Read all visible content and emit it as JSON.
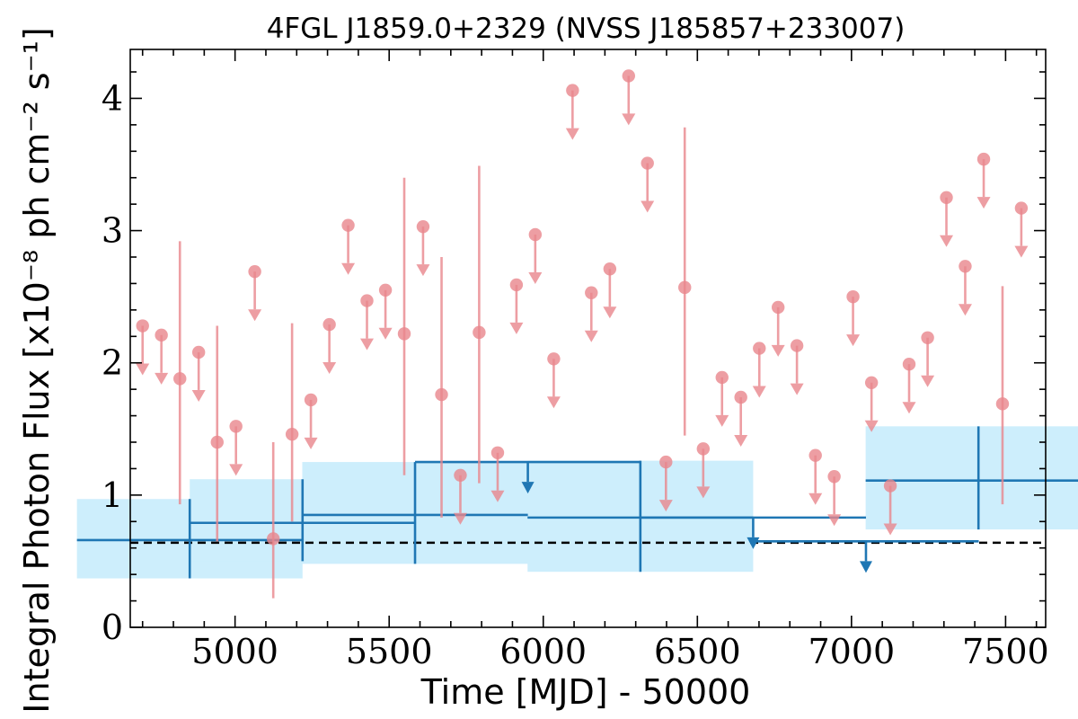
{
  "chart_data": {
    "type": "scatter",
    "title": "4FGL J1859.0+2329 (NVSS J185857+233007)",
    "xlabel": "Time [MJD] - 50000",
    "ylabel": "Integral Photon Flux [x10⁻⁸ ph cm⁻² s⁻¹]",
    "xlim": [
      4660,
      7630
    ],
    "ylim": [
      0,
      4.37
    ],
    "x_ticks": [
      5000,
      5500,
      6000,
      6500,
      7000,
      7500
    ],
    "y_ticks": [
      0,
      1,
      2,
      3,
      4
    ],
    "grid": false,
    "reference_level": 0.64,
    "colors": {
      "short_bins": "#e8868c",
      "long_bins": "#1f77b4",
      "long_bins_band": "#cdeefc",
      "reference_line": "#000000"
    },
    "series": [
      {
        "points": [
          {
            "x": 4700,
            "y": 2.28,
            "upper_limit": true
          },
          {
            "x": 4761,
            "y": 2.21,
            "upper_limit": true
          },
          {
            "x": 4821,
            "y": 1.88,
            "yerr": [
              0.95,
              1.04
            ]
          },
          {
            "x": 4882,
            "y": 2.08,
            "upper_limit": true
          },
          {
            "x": 4942,
            "y": 1.4,
            "yerr": [
              0.75,
              0.88
            ]
          },
          {
            "x": 5003,
            "y": 1.52,
            "upper_limit": true
          },
          {
            "x": 5064,
            "y": 2.69,
            "upper_limit": true
          },
          {
            "x": 5124,
            "y": 0.67,
            "yerr": [
              0.45,
              0.73
            ]
          },
          {
            "x": 5185,
            "y": 1.46,
            "yerr": [
              0.66,
              0.84
            ]
          },
          {
            "x": 5246,
            "y": 1.72,
            "upper_limit": true
          },
          {
            "x": 5306,
            "y": 2.29,
            "upper_limit": true
          },
          {
            "x": 5367,
            "y": 3.04,
            "upper_limit": true
          },
          {
            "x": 5428,
            "y": 2.47,
            "upper_limit": true
          },
          {
            "x": 5488,
            "y": 2.55,
            "upper_limit": true
          },
          {
            "x": 5549,
            "y": 2.22,
            "yerr": [
              1.07,
              1.18
            ]
          },
          {
            "x": 5610,
            "y": 3.03,
            "upper_limit": true
          },
          {
            "x": 5670,
            "y": 1.76,
            "yerr": [
              0.93,
              1.04
            ]
          },
          {
            "x": 5731,
            "y": 1.15,
            "upper_limit": true
          },
          {
            "x": 5792,
            "y": 2.23,
            "yerr": [
              1.14,
              1.26
            ]
          },
          {
            "x": 5852,
            "y": 1.32,
            "upper_limit": true
          },
          {
            "x": 5913,
            "y": 2.59,
            "upper_limit": true
          },
          {
            "x": 5974,
            "y": 2.97,
            "upper_limit": true
          },
          {
            "x": 6034,
            "y": 2.03,
            "upper_limit": true
          },
          {
            "x": 6095,
            "y": 4.06,
            "upper_limit": true
          },
          {
            "x": 6156,
            "y": 2.53,
            "upper_limit": true
          },
          {
            "x": 6216,
            "y": 2.71,
            "upper_limit": true
          },
          {
            "x": 6277,
            "y": 4.17,
            "upper_limit": true
          },
          {
            "x": 6338,
            "y": 3.51,
            "upper_limit": true
          },
          {
            "x": 6398,
            "y": 1.25,
            "upper_limit": true
          },
          {
            "x": 6459,
            "y": 2.57,
            "yerr": [
              1.12,
              1.21
            ]
          },
          {
            "x": 6519,
            "y": 1.35,
            "upper_limit": true
          },
          {
            "x": 6580,
            "y": 1.89,
            "upper_limit": true
          },
          {
            "x": 6641,
            "y": 1.74,
            "upper_limit": true
          },
          {
            "x": 6701,
            "y": 2.11,
            "upper_limit": true
          },
          {
            "x": 6762,
            "y": 2.42,
            "upper_limit": true
          },
          {
            "x": 6823,
            "y": 2.13,
            "upper_limit": true
          },
          {
            "x": 6883,
            "y": 1.3,
            "upper_limit": true
          },
          {
            "x": 6944,
            "y": 1.14,
            "upper_limit": true
          },
          {
            "x": 7005,
            "y": 2.5,
            "upper_limit": true
          },
          {
            "x": 7065,
            "y": 1.85,
            "upper_limit": true
          },
          {
            "x": 7126,
            "y": 1.07,
            "upper_limit": true
          },
          {
            "x": 7187,
            "y": 1.99,
            "upper_limit": true
          },
          {
            "x": 7247,
            "y": 2.19,
            "upper_limit": true
          },
          {
            "x": 7308,
            "y": 3.25,
            "upper_limit": true
          },
          {
            "x": 7369,
            "y": 2.73,
            "upper_limit": true
          },
          {
            "x": 7429,
            "y": 3.54,
            "upper_limit": true
          },
          {
            "x": 7490,
            "y": 1.69,
            "yerr": [
              0.76,
              0.89
            ]
          },
          {
            "x": 7551,
            "y": 3.17,
            "upper_limit": true
          }
        ]
      },
      {
        "points": [
          {
            "x": 4853,
            "xerr": 366,
            "y": 0.66,
            "yerr": [
              0.29,
              0.31
            ],
            "upper_limit": false
          },
          {
            "x": 5219,
            "xerr": 366,
            "y": 0.79,
            "yerr": [
              0.29,
              0.33
            ],
            "upper_limit": false
          },
          {
            "x": 5584,
            "xerr": 366,
            "y": 0.85,
            "yerr": [
              0.37,
              0.4
            ],
            "upper_limit": false
          },
          {
            "x": 5950,
            "xerr": 366,
            "y": 1.25,
            "upper_limit": true
          },
          {
            "x": 6315,
            "xerr": 366,
            "y": 0.83,
            "yerr": [
              0.41,
              0.43
            ],
            "upper_limit": false
          },
          {
            "x": 6681,
            "xerr": 366,
            "y": 0.83,
            "upper_limit": true
          },
          {
            "x": 7047,
            "xerr": 366,
            "y": 0.65,
            "upper_limit": true
          },
          {
            "x": 7412,
            "xerr": 366,
            "y": 1.11,
            "yerr": [
              0.37,
              0.41
            ],
            "upper_limit": false
          }
        ]
      }
    ]
  }
}
